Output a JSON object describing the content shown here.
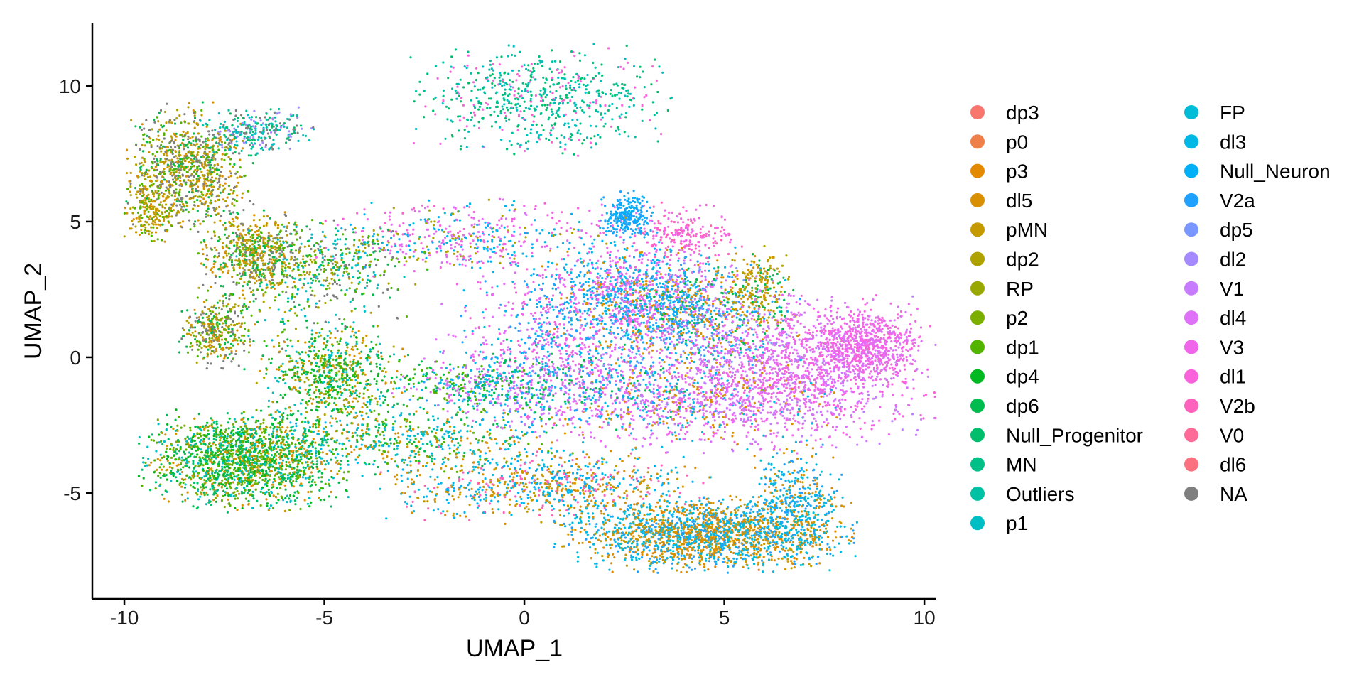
{
  "chart_data": {
    "type": "scatter",
    "xlabel": "UMAP_1",
    "ylabel": "UMAP_2",
    "xlim": [
      -10.8,
      10.3
    ],
    "ylim": [
      -8.9,
      12.3
    ],
    "x_ticks": [
      -10,
      -5,
      0,
      5,
      10
    ],
    "y_ticks": [
      -5,
      0,
      5,
      10
    ],
    "grid": false,
    "legend_position": "right",
    "legend": [
      {
        "name": "dp3",
        "color": "#F8766D"
      },
      {
        "name": "p0",
        "color": "#EF7F48"
      },
      {
        "name": "p3",
        "color": "#E38900"
      },
      {
        "name": "dl5",
        "color": "#D89000"
      },
      {
        "name": "pMN",
        "color": "#C49A00"
      },
      {
        "name": "dp2",
        "color": "#AEA200"
      },
      {
        "name": "RP",
        "color": "#99A800"
      },
      {
        "name": "p2",
        "color": "#7CAE00"
      },
      {
        "name": "dp1",
        "color": "#53B400"
      },
      {
        "name": "dp4",
        "color": "#00B81F"
      },
      {
        "name": "dp6",
        "color": "#00BB4E"
      },
      {
        "name": "Null_Progenitor",
        "color": "#00BE6C"
      },
      {
        "name": "MN",
        "color": "#00C087"
      },
      {
        "name": "Outliers",
        "color": "#00C1A3"
      },
      {
        "name": "p1",
        "color": "#00BFC4"
      },
      {
        "name": "FP",
        "color": "#00BCD8"
      },
      {
        "name": "dl3",
        "color": "#00B8E5"
      },
      {
        "name": "Null_Neuron",
        "color": "#00B0F6"
      },
      {
        "name": "V2a",
        "color": "#1FA1FF"
      },
      {
        "name": "dp5",
        "color": "#7997FF"
      },
      {
        "name": "dl2",
        "color": "#A58AFF"
      },
      {
        "name": "V1",
        "color": "#C77CFF"
      },
      {
        "name": "dl4",
        "color": "#DF70F8"
      },
      {
        "name": "V3",
        "color": "#F066EA"
      },
      {
        "name": "dl1",
        "color": "#FA62DB"
      },
      {
        "name": "V2b",
        "color": "#FF62BC"
      },
      {
        "name": "V0",
        "color": "#FF6A98"
      },
      {
        "name": "dl6",
        "color": "#FC717F"
      },
      {
        "name": "NA",
        "color": "#7F7F7F"
      }
    ],
    "clusters": [
      {
        "x": -8.4,
        "y": 7.0,
        "sx": 0.7,
        "sy": 1.0,
        "n": 900,
        "pal": [
          "#7F7F7F",
          "#AEA200",
          "#53B400",
          "#00BB4E",
          "#D89000",
          "#C49A00",
          "#7F7F7F"
        ]
      },
      {
        "x": -9.3,
        "y": 5.5,
        "sx": 0.3,
        "sy": 0.6,
        "n": 200,
        "pal": [
          "#AEA200",
          "#C49A00",
          "#53B400",
          "#D89000"
        ]
      },
      {
        "x": -6.7,
        "y": 8.3,
        "sx": 0.6,
        "sy": 0.4,
        "n": 260,
        "pal": [
          "#00BE6C",
          "#00C1A3",
          "#A58AFF",
          "#7F7F7F",
          "#00BFC4"
        ]
      },
      {
        "x": -6.8,
        "y": 3.8,
        "sx": 0.6,
        "sy": 0.7,
        "n": 600,
        "pal": [
          "#AEA200",
          "#53B400",
          "#00BB4E",
          "#C49A00",
          "#7F7F7F",
          "#D89000"
        ]
      },
      {
        "x": -7.7,
        "y": 0.9,
        "sx": 0.4,
        "sy": 0.6,
        "n": 360,
        "pal": [
          "#AEA200",
          "#53B400",
          "#00BB4E",
          "#D89000",
          "#7F7F7F"
        ]
      },
      {
        "x": -5.2,
        "y": 2.5,
        "sx": 1.0,
        "sy": 1.2,
        "n": 280,
        "pal": [
          "#00BB4E",
          "#00BFC4",
          "#53B400",
          "#7F7F7F",
          "#AEA200"
        ]
      },
      {
        "x": 0.4,
        "y": 9.5,
        "sx": 1.4,
        "sy": 0.9,
        "n": 650,
        "pal": [
          "#00C1A3",
          "#00C087",
          "#00BE6C",
          "#FA62DB",
          "#00BFC4"
        ]
      },
      {
        "x": -4.8,
        "y": -0.6,
        "sx": 0.8,
        "sy": 0.8,
        "n": 650,
        "pal": [
          "#00BB4E",
          "#53B400",
          "#00B81F",
          "#AEA200",
          "#D89000",
          "#00BFC4"
        ]
      },
      {
        "x": -7.0,
        "y": -3.8,
        "sx": 1.1,
        "sy": 0.8,
        "n": 1700,
        "pal": [
          "#00B81F",
          "#53B400",
          "#00BB4E",
          "#D89000",
          "#00BFC4",
          "#7CAE00",
          "#00BE6C"
        ]
      },
      {
        "x": -3.0,
        "y": -3.0,
        "sx": 1.8,
        "sy": 0.6,
        "n": 600,
        "pal": [
          "#00BB4E",
          "#53B400",
          "#D89000",
          "#00B8E5",
          "#00BFC4"
        ]
      },
      {
        "x": 0.5,
        "y": -4.7,
        "sx": 1.8,
        "sy": 0.6,
        "n": 800,
        "pal": [
          "#D89000",
          "#C49A00",
          "#00B8E5",
          "#00B0F6",
          "#FF62BC"
        ]
      },
      {
        "x": 4.5,
        "y": -6.5,
        "sx": 1.6,
        "sy": 0.6,
        "n": 1900,
        "pal": [
          "#D89000",
          "#C49A00",
          "#E38900",
          "#00B8E5",
          "#00BCD8",
          "#1FA1FF"
        ]
      },
      {
        "x": 6.8,
        "y": -5.3,
        "sx": 0.5,
        "sy": 1.0,
        "n": 400,
        "pal": [
          "#00B8E5",
          "#00BCD8",
          "#D89000",
          "#1FA1FF"
        ]
      },
      {
        "x": 2.8,
        "y": 2.2,
        "sx": 1.1,
        "sy": 0.9,
        "n": 1100,
        "pal": [
          "#1FA1FF",
          "#00B0F6",
          "#00B8E5",
          "#DF70F8",
          "#F066EA",
          "#D89000"
        ]
      },
      {
        "x": 2.6,
        "y": 5.2,
        "sx": 0.3,
        "sy": 0.4,
        "n": 250,
        "pal": [
          "#1FA1FF",
          "#00B0F6"
        ]
      },
      {
        "x": 4.0,
        "y": 4.5,
        "sx": 0.6,
        "sy": 0.5,
        "n": 200,
        "pal": [
          "#FA62DB",
          "#FF62BC",
          "#F066EA"
        ]
      },
      {
        "x": 4.5,
        "y": 1.5,
        "sx": 1.0,
        "sy": 0.9,
        "n": 700,
        "pal": [
          "#1FA1FF",
          "#00B8E5",
          "#DF70F8",
          "#00BB4E",
          "#D89000",
          "#7997FF"
        ]
      },
      {
        "x": 5.8,
        "y": 2.5,
        "sx": 0.4,
        "sy": 0.7,
        "n": 220,
        "pal": [
          "#D89000",
          "#AEA200",
          "#00BB4E",
          "#C49A00"
        ]
      },
      {
        "x": 7.0,
        "y": -0.5,
        "sx": 1.5,
        "sy": 1.2,
        "n": 1400,
        "pal": [
          "#DF70F8",
          "#F066EA",
          "#FA62DB",
          "#C77CFF"
        ]
      },
      {
        "x": 8.5,
        "y": 0.5,
        "sx": 0.6,
        "sy": 0.6,
        "n": 600,
        "pal": [
          "#DF70F8",
          "#F066EA",
          "#FA62DB"
        ]
      },
      {
        "x": 4.0,
        "y": -1.5,
        "sx": 1.6,
        "sy": 0.9,
        "n": 900,
        "pal": [
          "#DF70F8",
          "#F066EA",
          "#C77CFF",
          "#00B8E5",
          "#D89000"
        ]
      },
      {
        "x": -1.3,
        "y": 4.4,
        "sx": 1.8,
        "sy": 0.6,
        "n": 500,
        "pal": [
          "#F066EA",
          "#FA62DB",
          "#DF70F8",
          "#00B8E5",
          "#00B0F6",
          "#AEA200"
        ]
      },
      {
        "x": -4.8,
        "y": 3.6,
        "sx": 1.0,
        "sy": 0.6,
        "n": 260,
        "pal": [
          "#53B400",
          "#00BB4E",
          "#AEA200",
          "#00BFC4",
          "#7F7F7F"
        ]
      },
      {
        "x": 0.8,
        "y": 0.5,
        "sx": 1.2,
        "sy": 1.5,
        "n": 700,
        "pal": [
          "#FA62DB",
          "#F066EA",
          "#DF70F8",
          "#00B8E5",
          "#1FA1FF"
        ]
      },
      {
        "x": 0.5,
        "y": -1.0,
        "sx": 1.5,
        "sy": 0.8,
        "n": 500,
        "pal": [
          "#00B8E5",
          "#1FA1FF",
          "#C77CFF",
          "#DF70F8",
          "#00BB4E"
        ]
      },
      {
        "x": -1.5,
        "y": -1.0,
        "sx": 1.0,
        "sy": 0.4,
        "n": 250,
        "pal": [
          "#00BB4E",
          "#00B8E5",
          "#53B400",
          "#DF70F8"
        ]
      }
    ]
  }
}
